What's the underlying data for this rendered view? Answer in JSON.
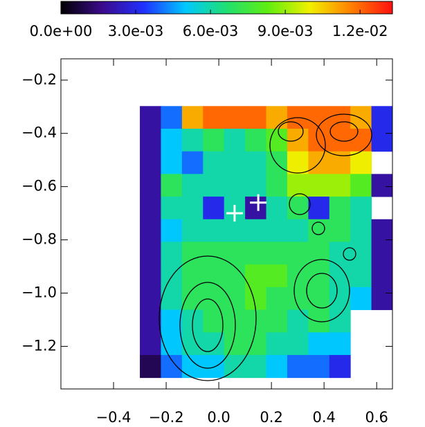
{
  "chart_data": {
    "type": "heatmap",
    "colormap": [
      "#000000",
      "#3b0a8c",
      "#2030ff",
      "#00c8ff",
      "#20e070",
      "#60ee10",
      "#f0f000",
      "#ff8000",
      "#ff1010"
    ],
    "zlim": [
      0,
      0.0133
    ],
    "zticks": [
      {
        "value": 0,
        "label": "0.0e+00"
      },
      {
        "value": 0.003,
        "label": "3.0e-03"
      },
      {
        "value": 0.006,
        "label": "6.0e-03"
      },
      {
        "value": 0.009,
        "label": "9.0e-03"
      },
      {
        "value": 0.012,
        "label": "1.2e-02"
      }
    ],
    "xlim": [
      -0.6,
      0.66
    ],
    "ylim": [
      -1.36,
      -0.12
    ],
    "xticks": [
      {
        "value": -0.4,
        "label": "−0.4"
      },
      {
        "value": -0.2,
        "label": "−0.2"
      },
      {
        "value": 0,
        "label": "0.0"
      },
      {
        "value": 0.2,
        "label": "0.2"
      },
      {
        "value": 0.4,
        "label": "0.4"
      },
      {
        "value": 0.6,
        "label": "0.6"
      }
    ],
    "yticks": [
      {
        "value": -0.2,
        "label": "−0.2"
      },
      {
        "value": -0.4,
        "label": "−0.4"
      },
      {
        "value": -0.6,
        "label": "−0.6"
      },
      {
        "value": -0.8,
        "label": "−0.8"
      },
      {
        "value": -1,
        "label": "−1.0"
      },
      {
        "value": -1.2,
        "label": "−1.2"
      }
    ],
    "x": [
      -0.26,
      -0.18,
      -0.1,
      -0.02,
      0.06,
      0.14,
      0.22,
      0.3,
      0.38,
      0.46,
      0.54,
      0.62
    ],
    "y": [
      -0.34,
      -0.425,
      -0.51,
      -0.595,
      -0.68,
      -0.765,
      -0.85,
      -0.935,
      -1.02,
      -1.105,
      -1.19,
      -1.275
    ],
    "z": [
      [
        0.002,
        0.004,
        0.011,
        0.012,
        0.012,
        0.012,
        0.011,
        0.012,
        0.012,
        0.012,
        0.011,
        0.003
      ],
      [
        0.002,
        0.005,
        0.006,
        0.007,
        0.006,
        0.007,
        0.008,
        0.011,
        0.012,
        0.012,
        0.012,
        0.003
      ],
      [
        0.002,
        0.005,
        0.004,
        0.006,
        0.006,
        0.006,
        0.007,
        0.01,
        0.011,
        0.011,
        0.01,
        null
      ],
      [
        0.002,
        0.007,
        0.006,
        0.006,
        0.006,
        0.006,
        0.007,
        0.009,
        0.009,
        0.009,
        0.008,
        0.002
      ],
      [
        0.002,
        0.006,
        0.006,
        0.003,
        0.006,
        0.002,
        0.006,
        0.007,
        0.003,
        0.007,
        0.006,
        null
      ],
      [
        0.002,
        0.005,
        0.006,
        0.006,
        0.006,
        0.006,
        0.006,
        0.006,
        0.007,
        0.007,
        0.006,
        0.002
      ],
      [
        0.002,
        0.006,
        0.007,
        0.007,
        0.007,
        0.007,
        0.007,
        0.007,
        0.007,
        0.006,
        0.006,
        0.002
      ],
      [
        0.002,
        0.006,
        0.007,
        0.007,
        0.007,
        0.008,
        0.008,
        0.007,
        0.007,
        0.006,
        0.006,
        0.002
      ],
      [
        0.002,
        0.006,
        0.007,
        0.007,
        0.007,
        0.008,
        0.007,
        0.007,
        0.007,
        0.006,
        0.005,
        0.002
      ],
      [
        0.002,
        0.005,
        0.006,
        0.007,
        0.007,
        0.007,
        0.007,
        0.006,
        0.007,
        0.006,
        null,
        null
      ],
      [
        0.002,
        0.005,
        0.006,
        0.006,
        0.007,
        0.007,
        0.006,
        0.006,
        0.005,
        0.005,
        null,
        null
      ],
      [
        0.001,
        0.004,
        0.005,
        0.005,
        0.006,
        0.006,
        0.005,
        0.004,
        0.004,
        0.003,
        null,
        null
      ]
    ],
    "markers": {
      "x": [
        0.06,
        0.15
      ],
      "y": [
        -0.7,
        -0.66
      ],
      "color": "#ffffff"
    }
  }
}
